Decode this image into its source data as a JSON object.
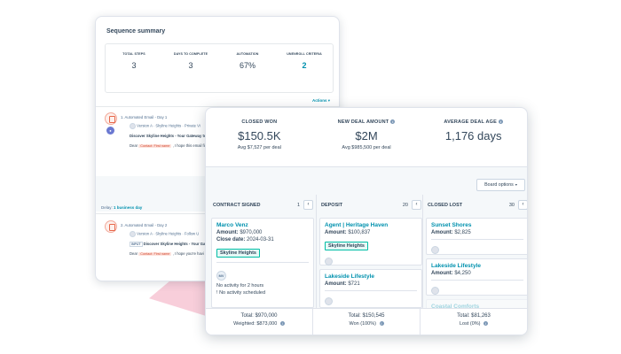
{
  "sequence": {
    "title": "Sequence summary",
    "stats": [
      {
        "label": "TOTAL STEPS",
        "value": "3"
      },
      {
        "label": "DAYS TO COMPLETE",
        "value": "3"
      },
      {
        "label": "AUTOMATION",
        "value": "67%"
      },
      {
        "label": "UNENROLL CRITERIA",
        "value": "2"
      }
    ],
    "actions_label": "Actions",
    "step1": {
      "title": "1. Automated Email - Day 1",
      "version": "Version A · Skyline Heights · Private Vi",
      "subject": "Discover Skyline Heights - Your Gateway to L",
      "body_prefix": "Dear",
      "token": "Contact: First name",
      "body_suffix": ", I hope this email fin"
    },
    "delay_label": "Delay:",
    "delay_value": "1 business day",
    "step2": {
      "title": "2. Automated Email - Day 2",
      "version": "Version A · Skyline Heights · Follow U",
      "input_label": "INPUT",
      "subject": "Discover Skyline Heights - Your Gateway",
      "body_prefix": "Dear",
      "token": "Contact: First name",
      "body_suffix": ", I hope you're havi"
    }
  },
  "summary": [
    {
      "label": "CLOSED WON",
      "value": "$150.5K",
      "sub": "Avg $7,527 per deal",
      "info": false
    },
    {
      "label": "NEW DEAL AMOUNT",
      "value": "$2M",
      "sub": "Avg $985,500 per deal",
      "info": true
    },
    {
      "label": "AVERAGE DEAL AGE",
      "value": "1,176 days",
      "sub": "",
      "info": true
    }
  ],
  "board_options_label": "Board options",
  "columns": [
    {
      "title": "CONTRACT SIGNED",
      "count": "1",
      "footer_total": "Total: $970,000",
      "footer_sub": "Weighted: $873,000"
    },
    {
      "title": "DEPOSIT",
      "count": "20",
      "footer_total": "Total: $150,545",
      "footer_sub": "Won (100%)"
    },
    {
      "title": "CLOSED LOST",
      "count": "30",
      "footer_total": "Total: $81,263",
      "footer_sub": "Lost (0%)"
    }
  ],
  "deals": {
    "marco": {
      "name": "Marco Venz",
      "amount_label": "Amount:",
      "amount": "$970,000",
      "close_label": "Close date:",
      "close": "2024-03-31",
      "tag": "Skyline Heights",
      "owner": "MV",
      "note1": "No activity for 2 hours",
      "note2": "No activity scheduled"
    },
    "agent": {
      "name": "Agent | Heritage Haven",
      "amount_label": "Amount:",
      "amount": "$100,837",
      "tag": "Skyline Heights"
    },
    "lakeside_dep": {
      "name": "Lakeside Lifestyle",
      "amount_label": "Amount:",
      "amount": "$721"
    },
    "sunset": {
      "name": "Sunset Shores",
      "amount_label": "Amount:",
      "amount": "$2,825"
    },
    "lakeside_lost": {
      "name": "Lakeside Lifestyle",
      "amount_label": "Amount:",
      "amount": "$4,250"
    },
    "coastal": {
      "name": "Coastal Comforts"
    }
  },
  "colors": {
    "accent": "#0091ae",
    "token_bg": "#fde2dc",
    "tag_border": "#00bda5",
    "pink_decor": "#f7c6d3"
  }
}
